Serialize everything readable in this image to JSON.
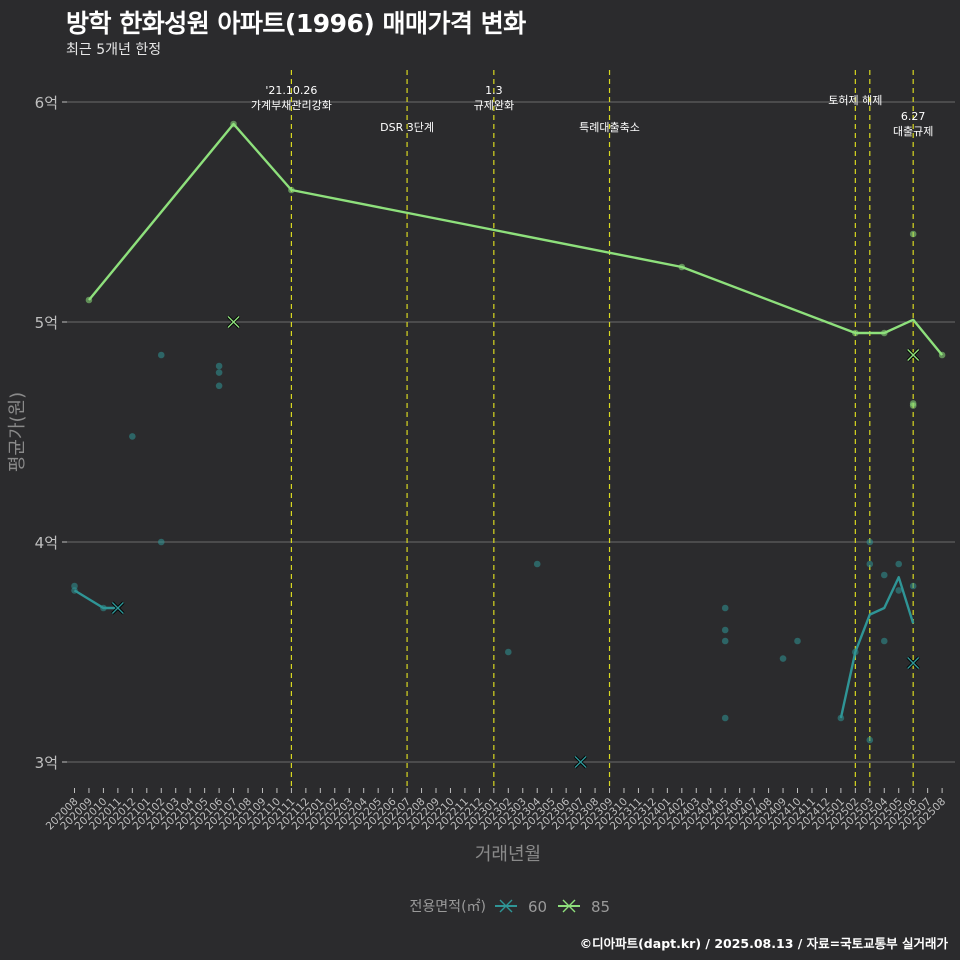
{
  "title": "방학 한화성원 아파트(1996) 매매가격 변화",
  "subtitle": "최근 5개년 한정",
  "caption": "©디아파트(dapt.kr) / 2025.08.13 / 자료=국토교통부 실거래가",
  "colors": {
    "background": "#2b2b2d",
    "grid": "#6b6b6b",
    "series_60": "#2f9596",
    "series_85": "#8ee07c",
    "event_line": "#d8d820",
    "text": "#ffffff",
    "axis_text": "#bfbfbf"
  },
  "chart_data": {
    "type": "line",
    "title": "방학 한화성원 아파트(1996) 매매가격 변화",
    "subtitle": "최근 5개년 한정",
    "xlabel": "거래년월",
    "ylabel": "평균가(원)",
    "ylim": [
      2.88,
      6.22
    ],
    "yticks": [
      {
        "value": 3,
        "label": "3억"
      },
      {
        "value": 4,
        "label": "4억"
      },
      {
        "value": 5,
        "label": "5억"
      },
      {
        "value": 6,
        "label": "6억"
      }
    ],
    "x_categories": [
      "202008",
      "202009",
      "202010",
      "202011",
      "202012",
      "202101",
      "202102",
      "202103",
      "202104",
      "202105",
      "202106",
      "202107",
      "202108",
      "202109",
      "202110",
      "202111",
      "202112",
      "202201",
      "202202",
      "202203",
      "202204",
      "202205",
      "202206",
      "202207",
      "202208",
      "202209",
      "202210",
      "202211",
      "202212",
      "202301",
      "202302",
      "202303",
      "202304",
      "202305",
      "202306",
      "202307",
      "202308",
      "202309",
      "202310",
      "202311",
      "202312",
      "202401",
      "202402",
      "202403",
      "202404",
      "202405",
      "202406",
      "202407",
      "202408",
      "202409",
      "202410",
      "202411",
      "202412",
      "202501",
      "202502",
      "202503",
      "202504",
      "202505",
      "202506",
      "202507",
      "202508"
    ],
    "legend": {
      "title": "전용면적(㎡)",
      "position": "bottom",
      "entries": [
        "60",
        "85"
      ]
    },
    "grid": true,
    "events": [
      {
        "x": "202111",
        "labels": [
          "'21.10.26",
          "가계부채관리강화"
        ],
        "row": "high"
      },
      {
        "x": "202207",
        "labels": [
          "DSR 3단계"
        ],
        "row": "low"
      },
      {
        "x": "202301",
        "labels": [
          "1.3",
          "규제완화"
        ],
        "row": "high"
      },
      {
        "x": "202309",
        "labels": [
          "특례대출축소"
        ],
        "row": "low"
      },
      {
        "x": "202502",
        "labels": [
          "토허제 해제"
        ],
        "row": "mid"
      },
      {
        "x": "202503",
        "labels": [],
        "row": "mid"
      },
      {
        "x": "202506",
        "labels": [
          "6.27",
          "대출규제"
        ],
        "row": "low2"
      }
    ],
    "series": [
      {
        "name": "60",
        "line": [
          {
            "x": "202008",
            "y": 3.78
          },
          {
            "x": "202010",
            "y": 3.7
          },
          {
            "x": "202011",
            "y": 3.7
          }
        ],
        "line2": [
          {
            "x": "202501",
            "y": 3.2
          },
          {
            "x": "202502",
            "y": 3.5
          },
          {
            "x": "202503",
            "y": 3.67
          },
          {
            "x": "202504",
            "y": 3.7
          },
          {
            "x": "202505",
            "y": 3.84
          },
          {
            "x": "202506",
            "y": 3.63
          }
        ],
        "points": [
          {
            "x": "202008",
            "y": 3.8
          },
          {
            "x": "202008",
            "y": 3.78
          },
          {
            "x": "202010",
            "y": 3.7
          },
          {
            "x": "202012",
            "y": 4.48
          },
          {
            "x": "202102",
            "y": 4.85
          },
          {
            "x": "202102",
            "y": 4.0
          },
          {
            "x": "202106",
            "y": 4.8
          },
          {
            "x": "202106",
            "y": 4.77
          },
          {
            "x": "202106",
            "y": 4.71
          },
          {
            "x": "202302",
            "y": 3.5
          },
          {
            "x": "202304",
            "y": 3.9
          },
          {
            "x": "202405",
            "y": 3.7
          },
          {
            "x": "202405",
            "y": 3.6
          },
          {
            "x": "202405",
            "y": 3.55
          },
          {
            "x": "202405",
            "y": 3.2
          },
          {
            "x": "202409",
            "y": 3.47
          },
          {
            "x": "202410",
            "y": 3.55
          },
          {
            "x": "202501",
            "y": 3.2
          },
          {
            "x": "202502",
            "y": 3.5
          },
          {
            "x": "202503",
            "y": 4.0
          },
          {
            "x": "202503",
            "y": 3.9
          },
          {
            "x": "202503",
            "y": 3.1
          },
          {
            "x": "202504",
            "y": 3.85
          },
          {
            "x": "202504",
            "y": 3.55
          },
          {
            "x": "202505",
            "y": 3.9
          },
          {
            "x": "202505",
            "y": 3.78
          },
          {
            "x": "202506",
            "y": 3.8
          }
        ],
        "crosses": [
          {
            "x": "202011",
            "y": 3.7
          },
          {
            "x": "202307",
            "y": 3.0
          },
          {
            "x": "202506",
            "y": 3.45
          }
        ]
      },
      {
        "name": "85",
        "line": [
          {
            "x": "202009",
            "y": 5.1
          },
          {
            "x": "202107",
            "y": 5.9
          },
          {
            "x": "202111",
            "y": 5.6
          },
          {
            "x": "202402",
            "y": 5.25
          },
          {
            "x": "202502",
            "y": 4.95
          },
          {
            "x": "202504",
            "y": 4.95
          },
          {
            "x": "202506",
            "y": 5.01
          },
          {
            "x": "202508",
            "y": 4.85
          }
        ],
        "points": [
          {
            "x": "202009",
            "y": 5.1
          },
          {
            "x": "202107",
            "y": 5.9
          },
          {
            "x": "202111",
            "y": 5.6
          },
          {
            "x": "202402",
            "y": 5.25
          },
          {
            "x": "202502",
            "y": 4.95
          },
          {
            "x": "202504",
            "y": 4.95
          },
          {
            "x": "202506",
            "y": 5.4
          },
          {
            "x": "202506",
            "y": 4.63
          },
          {
            "x": "202506",
            "y": 4.62
          },
          {
            "x": "202508",
            "y": 4.85
          }
        ],
        "crosses": [
          {
            "x": "202107",
            "y": 5.0
          },
          {
            "x": "202506",
            "y": 4.85
          }
        ]
      }
    ]
  }
}
